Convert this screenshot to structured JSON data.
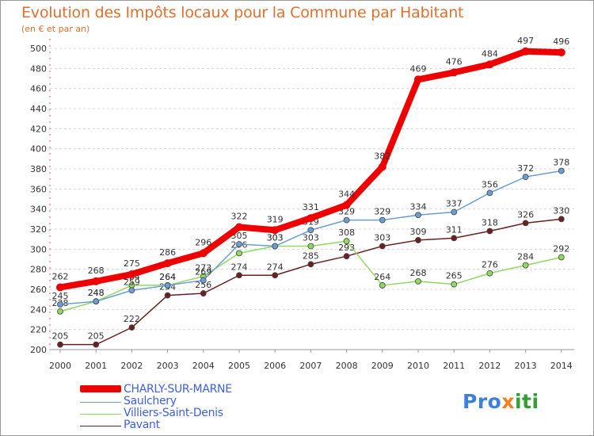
{
  "title": "Evolution des Impôts locaux pour la Commune par Habitant",
  "subtitle": "(en € et par an)",
  "logo": {
    "p1": "Pro",
    "p2": "x",
    "p3": "iti"
  },
  "chart_data": {
    "type": "line",
    "x": [
      "2000",
      "2001",
      "2002",
      "2003",
      "2004",
      "2005",
      "2006",
      "2007",
      "2008",
      "2009",
      "2010",
      "2011",
      "2012",
      "2013",
      "2014"
    ],
    "ylim": [
      200,
      500
    ],
    "yticks": [
      200,
      220,
      240,
      260,
      280,
      300,
      320,
      340,
      360,
      380,
      400,
      420,
      440,
      460,
      480,
      500
    ],
    "grid": "horizontal dashed",
    "legend_position": "bottom-left",
    "series": [
      {
        "name": "CHARLY-SUR-MARNE",
        "color": "#ee0000",
        "values": [
          262,
          268,
          275,
          286,
          296,
          322,
          319,
          331,
          344,
          382,
          469,
          476,
          484,
          497,
          496
        ]
      },
      {
        "name": "Saulchery",
        "color": "#6a9ed4",
        "values": [
          245,
          248,
          259,
          264,
          269,
          305,
          303,
          319,
          329,
          329,
          334,
          337,
          356,
          372,
          378
        ]
      },
      {
        "name": "Villiers-Saint-Denis",
        "color": "#90d860",
        "values": [
          238,
          248,
          264,
          264,
          273,
          296,
          303,
          303,
          308,
          264,
          268,
          265,
          276,
          284,
          292
        ]
      },
      {
        "name": "Pavant",
        "color": "#6a2020",
        "values": [
          205,
          205,
          222,
          254,
          256,
          274,
          274,
          285,
          293,
          303,
          309,
          311,
          318,
          326,
          330
        ]
      }
    ]
  }
}
